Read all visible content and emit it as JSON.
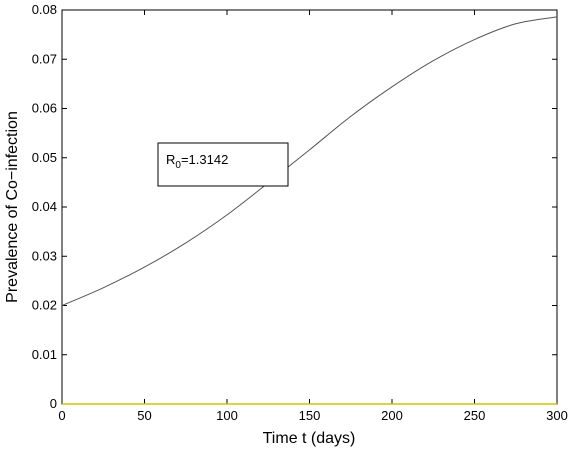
{
  "chart_data": {
    "type": "line",
    "title": "",
    "xlabel": "Time t (days)",
    "ylabel": "Prevalence of Co−infection",
    "xlim": [
      0,
      300
    ],
    "ylim": [
      0,
      0.08
    ],
    "x_ticks": [
      0,
      50,
      100,
      150,
      200,
      250,
      300
    ],
    "y_ticks": [
      0,
      0.01,
      0.02,
      0.03,
      0.04,
      0.05,
      0.06,
      0.07,
      0.08
    ],
    "x_tick_labels": [
      "0",
      "50",
      "100",
      "150",
      "200",
      "250",
      "300"
    ],
    "y_tick_labels": [
      "0",
      "0.01",
      "0.02",
      "0.03",
      "0.04",
      "0.05",
      "0.06",
      "0.07",
      "0.08"
    ],
    "grid": false,
    "series": [
      {
        "color": "#555555",
        "x": [
          0,
          25,
          50,
          75,
          100,
          125,
          150,
          175,
          200,
          225,
          250,
          275,
          300
        ],
        "y": [
          0.02,
          0.0236,
          0.0278,
          0.0327,
          0.0384,
          0.0449,
          0.0516,
          0.0584,
          0.0644,
          0.0697,
          0.074,
          0.0772,
          0.0786
        ]
      },
      {
        "color": "#c8c800",
        "x": [
          0,
          300
        ],
        "y": [
          0,
          0
        ]
      }
    ],
    "annotations": [
      {
        "symbol": "R",
        "subscript": "0",
        "text": "=1.3142"
      }
    ]
  }
}
